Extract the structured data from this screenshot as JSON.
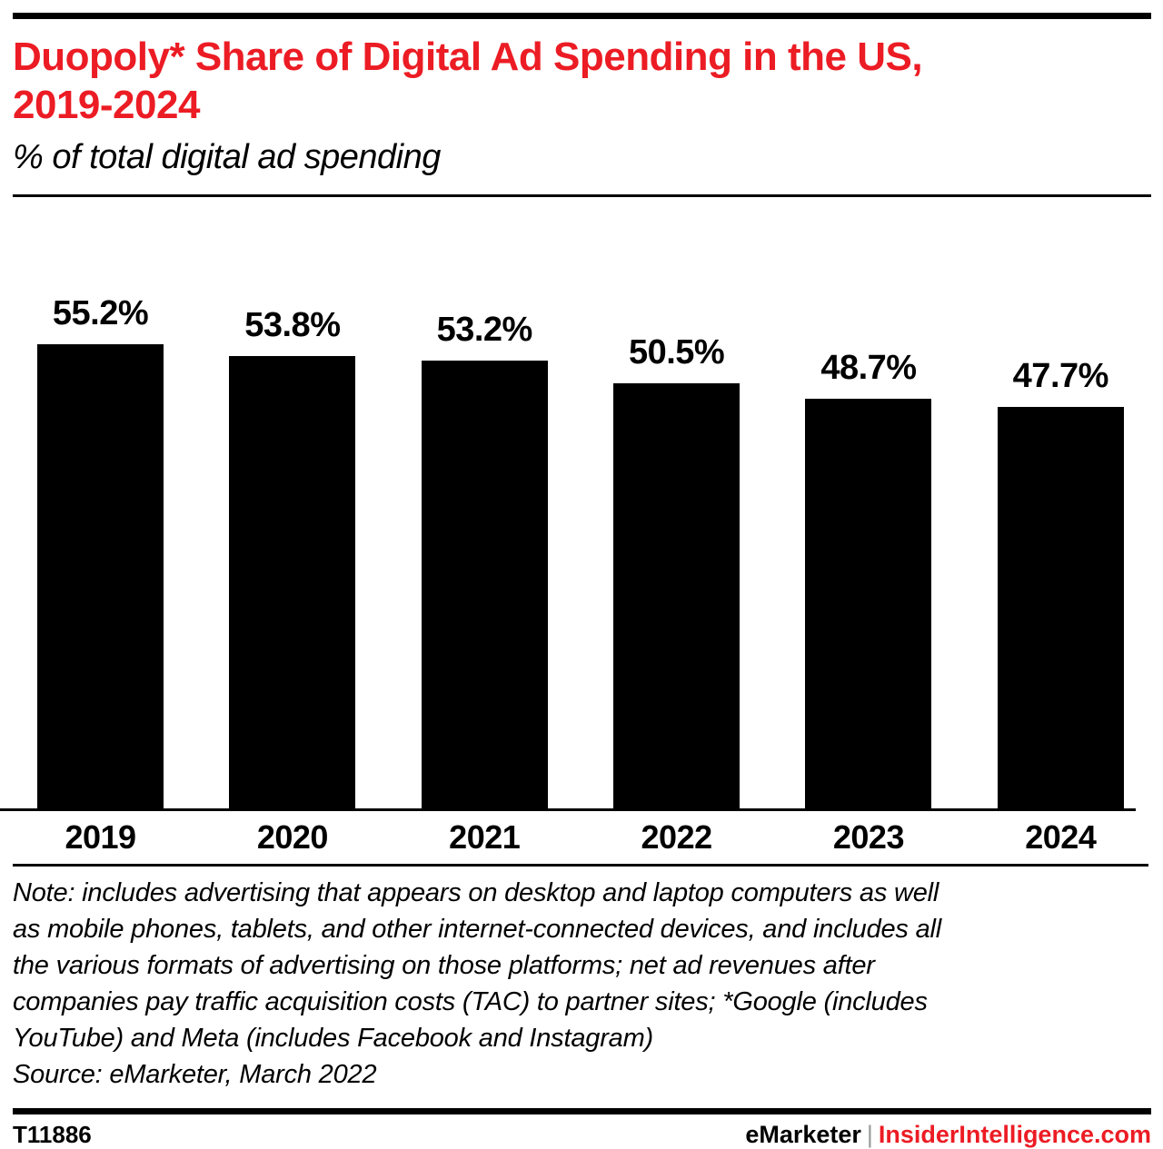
{
  "header": {
    "title_line1": "Duopoly* Share of Digital Ad Spending in the US,",
    "title_line2": "2019-2024",
    "subtitle": "% of total digital ad spending"
  },
  "chart_data": {
    "type": "bar",
    "title": "Duopoly* Share of Digital Ad Spending in the US, 2019-2024",
    "subtitle": "% of total digital ad spending",
    "categories": [
      "2019",
      "2020",
      "2021",
      "2022",
      "2023",
      "2024"
    ],
    "values": [
      55.2,
      53.8,
      53.2,
      50.5,
      48.7,
      47.7
    ],
    "value_labels": [
      "55.2%",
      "53.8%",
      "53.2%",
      "50.5%",
      "48.7%",
      "47.7%"
    ],
    "xlabel": "",
    "ylabel": "% of total digital ad spending",
    "ylim": [
      0,
      60
    ],
    "unit": "%",
    "bar_color": "#000000",
    "grid": false,
    "legend": "none",
    "data_labels_position": "above-bars"
  },
  "note": {
    "lines": [
      "Note: includes advertising that appears on desktop and laptop computers as well",
      "as mobile phones, tablets, and other internet-connected devices, and includes all",
      "the various formats of advertising on those platforms; net ad revenues after",
      "companies pay traffic acquisition costs (TAC) to partner sites; *Google (includes",
      "YouTube) and Meta (includes Facebook and Instagram)"
    ],
    "source": "Source: eMarketer, March 2022"
  },
  "footer": {
    "chart_id": "T11886",
    "brand_left": "eMarketer",
    "separator": "|",
    "brand_right": "InsiderIntelligence.com"
  },
  "colors": {
    "accent_red": "#ec1c24",
    "bar_black": "#000000",
    "separator_gray": "#97999b"
  }
}
